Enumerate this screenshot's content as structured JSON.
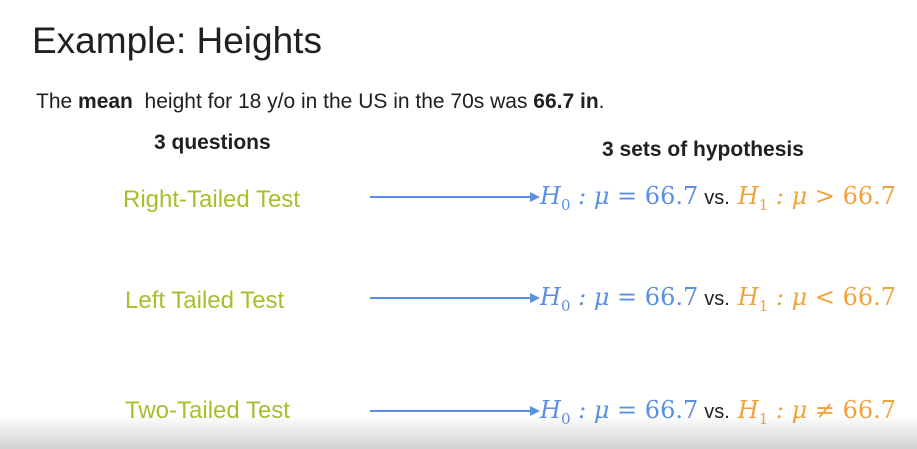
{
  "title": "Example: Heights",
  "intro": {
    "prefix": "The ",
    "bold1": "mean",
    "middle": "  height for 18 y/o in the US in the 70s was ",
    "bold2": "66.7 in",
    "suffix": "."
  },
  "questions_heading": "3 questions",
  "hypothesis_heading": "3 sets of hypothesis",
  "rows": [
    {
      "label": "Right-Tailed Test",
      "h0": {
        "H": "H",
        "sub": "0",
        "rest": " : μ = ",
        "num": "66.7"
      },
      "vs": "vs.",
      "h1": {
        "H": "H",
        "sub": "1",
        "rest": " : μ > ",
        "num": "66.7"
      }
    },
    {
      "label": "Left Tailed Test",
      "h0": {
        "H": "H",
        "sub": "0",
        "rest": " : μ = ",
        "num": "66.7"
      },
      "vs": "vs.",
      "h1": {
        "H": "H",
        "sub": "1",
        "rest": " : μ < ",
        "num": "66.7"
      }
    },
    {
      "label": "Two-Tailed Test",
      "h0": {
        "H": "H",
        "sub": "0",
        "rest": " : μ = ",
        "num": "66.7"
      },
      "vs": "vs.",
      "h1": {
        "H": "H",
        "sub": "1",
        "rest": " : μ ≠ ",
        "num": "66.7"
      }
    }
  ],
  "colors": {
    "label": "#a8bf2c",
    "h0": "#5b8fe0",
    "h1": "#f2a23a",
    "arrow": "#5b8fe0"
  },
  "icons": [
    "arrow-right-icon"
  ]
}
